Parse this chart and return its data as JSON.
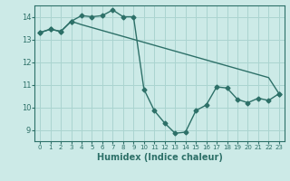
{
  "line1_x": [
    0,
    1,
    2,
    3,
    4,
    5,
    6,
    7,
    8,
    9,
    10,
    11,
    12,
    13,
    14,
    15,
    16,
    17,
    18,
    19,
    20,
    21,
    22,
    23
  ],
  "line1_y": [
    13.3,
    13.45,
    13.35,
    13.8,
    14.05,
    14.0,
    14.05,
    14.3,
    14.0,
    14.0,
    10.8,
    9.85,
    9.3,
    8.85,
    8.9,
    9.85,
    10.1,
    10.9,
    10.85,
    10.35,
    10.2,
    10.4,
    10.3,
    10.6
  ],
  "line2_x": [
    0,
    1,
    2,
    3,
    4,
    5,
    6,
    7,
    8,
    9,
    10,
    11,
    12,
    13,
    14,
    15,
    16,
    17,
    18,
    19,
    20,
    21,
    22,
    23
  ],
  "line2_y": [
    13.3,
    13.45,
    13.35,
    13.8,
    13.65,
    13.52,
    13.39,
    13.26,
    13.13,
    13.0,
    12.87,
    12.74,
    12.61,
    12.48,
    12.35,
    12.22,
    12.09,
    11.96,
    11.83,
    11.7,
    11.57,
    11.44,
    11.31,
    10.6
  ],
  "bg_color": "#cceae7",
  "grid_color": "#aad4d0",
  "line_color": "#2d7068",
  "xlabel": "Humidex (Indice chaleur)",
  "xlim": [
    -0.5,
    23.5
  ],
  "ylim": [
    8.5,
    14.5
  ],
  "yticks": [
    9,
    10,
    11,
    12,
    13,
    14
  ],
  "xticks": [
    0,
    1,
    2,
    3,
    4,
    5,
    6,
    7,
    8,
    9,
    10,
    11,
    12,
    13,
    14,
    15,
    16,
    17,
    18,
    19,
    20,
    21,
    22,
    23
  ],
  "marker": "D",
  "markersize": 2.5,
  "linewidth": 1.0,
  "label_fontsize": 7,
  "tick_fontsize": 6
}
